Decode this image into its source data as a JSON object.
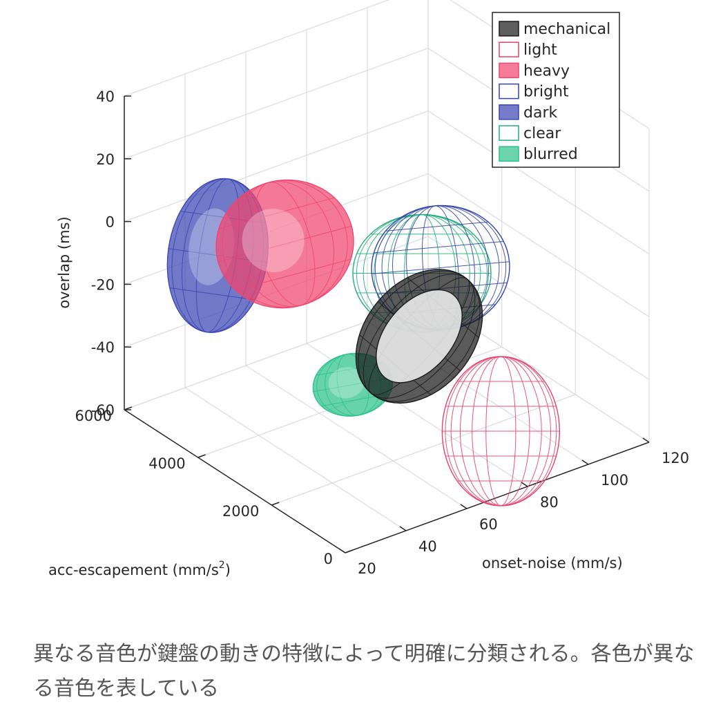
{
  "chart_data": {
    "type": "3d-ellipsoid",
    "xlabel": "acc-escapement (mm/s",
    "xlabel_sup": "2",
    "xlabel_end": ")",
    "ylabel": "onset-noise (mm/s)",
    "zlabel": "overlap (ms)",
    "x_ticks": [
      "0",
      "2000",
      "4000",
      "6000"
    ],
    "y_ticks": [
      "20",
      "40",
      "60",
      "80",
      "100",
      "120"
    ],
    "z_ticks": [
      "-60",
      "-40",
      "-20",
      "0",
      "20",
      "40"
    ],
    "xlim": [
      0,
      6000
    ],
    "ylim": [
      20,
      120
    ],
    "zlim": [
      -60,
      40
    ],
    "grid": true,
    "legend_position": "top-right",
    "legend": [
      {
        "name": "mechanical",
        "color": "#1a1a1a",
        "style": "filled"
      },
      {
        "name": "light",
        "color": "#e8416a",
        "style": "wireframe"
      },
      {
        "name": "heavy",
        "color": "#f0456e",
        "style": "filled"
      },
      {
        "name": "bright",
        "color": "#3344aa",
        "style": "wireframe"
      },
      {
        "name": "dark",
        "color": "#3a46b4",
        "style": "filled"
      },
      {
        "name": "clear",
        "color": "#20b07a",
        "style": "wireframe"
      },
      {
        "name": "blurred",
        "color": "#2cc28a",
        "style": "filled"
      }
    ],
    "series": [
      {
        "name": "dark",
        "center": {
          "x": 3500,
          "y": 25,
          "z": 2
        }
      },
      {
        "name": "heavy",
        "center": {
          "x": 3500,
          "y": 38,
          "z": 0
        }
      },
      {
        "name": "blurred",
        "center": {
          "x": 1500,
          "y": 35,
          "z": -22
        }
      },
      {
        "name": "mechanical",
        "center": {
          "x": 1500,
          "y": 55,
          "z": -18
        }
      },
      {
        "name": "clear",
        "center": {
          "x": 3000,
          "y": 85,
          "z": -10
        }
      },
      {
        "name": "bright",
        "center": {
          "x": 3000,
          "y": 90,
          "z": -10
        }
      },
      {
        "name": "light",
        "center": {
          "x": 500,
          "y": 75,
          "z": -40
        }
      }
    ]
  },
  "caption": "異なる音色が鍵盤の動きの特徴によって明確に分類される。各色が異なる音色を表している"
}
